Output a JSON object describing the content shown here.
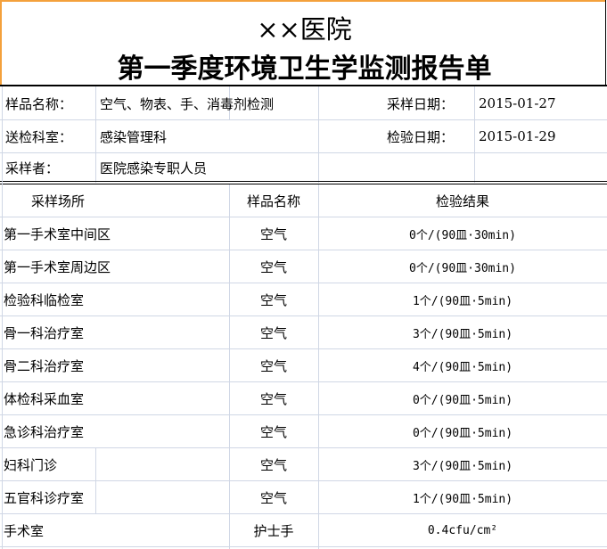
{
  "title": {
    "line1": "××医院",
    "line2": "第一季度环境卫生学监测报告单"
  },
  "info": {
    "sample_name_label": "样品名称：",
    "sample_name_value": "空气、物表、手、消毒剂检测",
    "sampling_date_label": "采样日期：",
    "sampling_date_value": "2015-01-27",
    "dept_label": "送检科室：",
    "dept_value": "感染管理科",
    "test_date_label": "检验日期：",
    "test_date_value": "2015-01-29",
    "sampler_label": "采样者：",
    "sampler_value": "医院感染专职人员"
  },
  "table": {
    "headers": [
      "采样场所",
      "样品名称",
      "检验结果"
    ],
    "rows": [
      {
        "place": "第一手术室中间区",
        "sample": "空气",
        "result": "0个/(90皿·30min)"
      },
      {
        "place": "第一手术室周边区",
        "sample": "空气",
        "result": "0个/(90皿·30min)"
      },
      {
        "place": "检验科临检室",
        "sample": "空气",
        "result": "1个/(90皿·5min)"
      },
      {
        "place": "骨一科治疗室",
        "sample": "空气",
        "result": "3个/(90皿·5min)"
      },
      {
        "place": "骨二科治疗室",
        "sample": "空气",
        "result": "4个/(90皿·5min)"
      },
      {
        "place": "体检科采血室",
        "sample": "空气",
        "result": "0个/(90皿·5min)"
      },
      {
        "place": "急诊科治疗室",
        "sample": "空气",
        "result": "0个/(90皿·5min)"
      },
      {
        "place": "妇科门诊",
        "sample": "空气",
        "result": "3个/(90皿·5min)"
      },
      {
        "place": "五官科诊疗室",
        "sample": "空气",
        "result": "1个/(90皿·5min)"
      },
      {
        "place": "手术室",
        "sample": "护士手",
        "result": "0.4cfu/cm²"
      }
    ]
  },
  "colors": {
    "selection": "#f4a13c",
    "grid": "#d0d7e5"
  }
}
